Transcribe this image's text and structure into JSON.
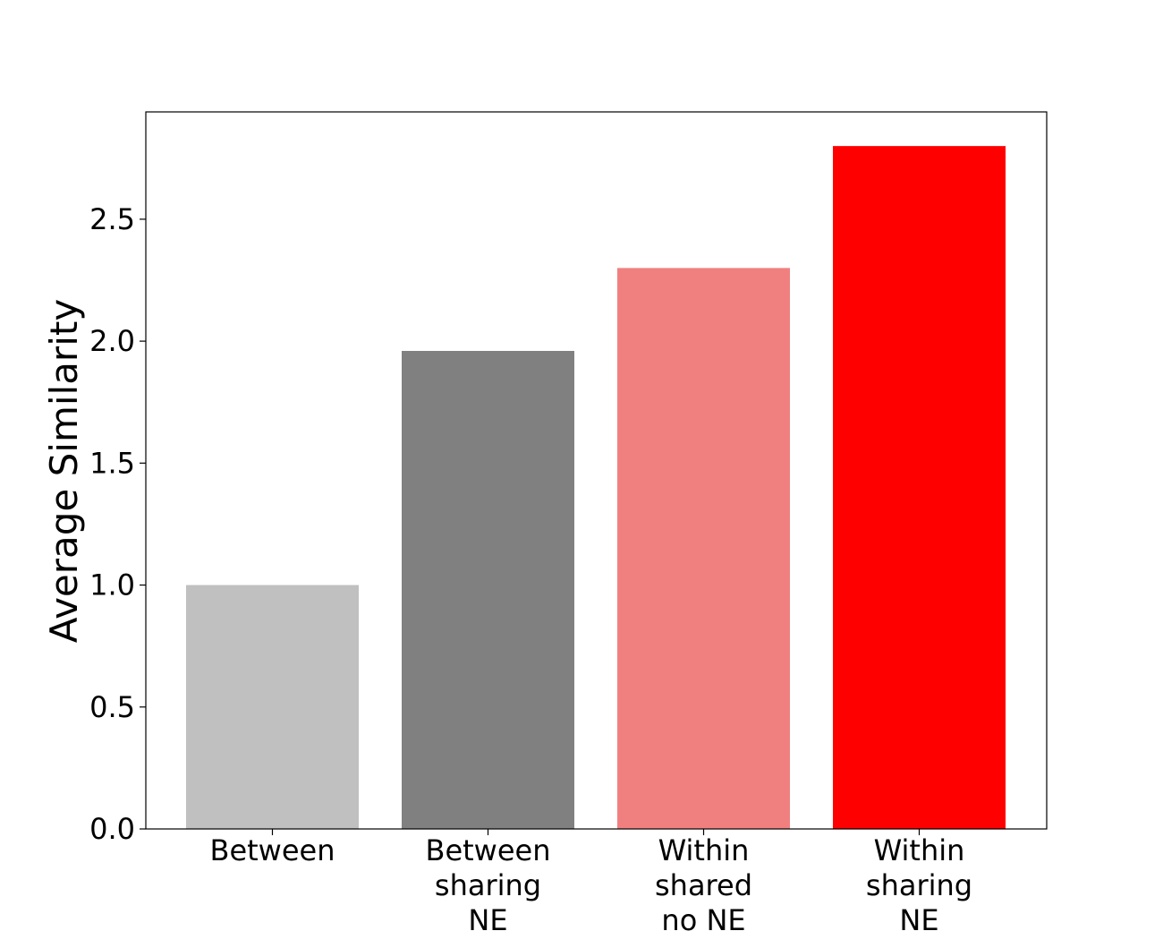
{
  "chart_data": {
    "type": "bar",
    "title": "",
    "xlabel": "",
    "ylabel": "Average Similarity",
    "ylim": [
      0,
      2.94
    ],
    "yticks": [
      0.0,
      0.5,
      1.0,
      1.5,
      2.0,
      2.5
    ],
    "ytick_labels": [
      "0.0",
      "0.5",
      "1.0",
      "1.5",
      "2.0",
      "2.5"
    ],
    "grid": false,
    "legend": "none",
    "categories": [
      [
        "Between"
      ],
      [
        "Between",
        "sharing",
        "NE"
      ],
      [
        "Within",
        "shared",
        "no NE"
      ],
      [
        "Within",
        "sharing",
        "NE"
      ]
    ],
    "values": [
      1.0,
      1.96,
      2.3,
      2.8
    ],
    "colors": [
      "#c0c0c0",
      "#808080",
      "#f08080",
      "#ff0000"
    ]
  }
}
